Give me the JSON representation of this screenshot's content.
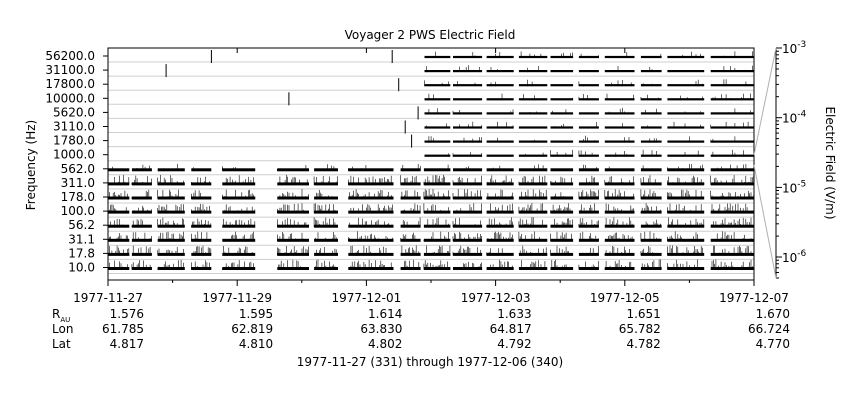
{
  "chart_data": {
    "type": "heatmap",
    "title": "Voyager 2 PWS Electric Field",
    "ylabel": "Frequency (Hz)",
    "colorbar": {
      "label": "Electric Field (V/m)",
      "scale": "log",
      "range": [
        5e-07,
        0.001
      ],
      "ticks": [
        {
          "mantissa": "10",
          "exp": "-3",
          "value": 0.001
        },
        {
          "mantissa": "10",
          "exp": "-4",
          "value": 0.0001
        },
        {
          "mantissa": "10",
          "exp": "-5",
          "value": 1e-05
        },
        {
          "mantissa": "10",
          "exp": "-6",
          "value": 1e-06
        }
      ]
    },
    "channels": [
      "10.0",
      "17.8",
      "31.1",
      "56.2",
      "100.0",
      "178.0",
      "311.0",
      "562.0",
      "1000.0",
      "1780.0",
      "3110.0",
      "5620.0",
      "10000.0",
      "17800.0",
      "31100.0",
      "56200.0"
    ],
    "x_range": [
      "1977-11-27",
      "1977-12-07"
    ],
    "x_ticks": [
      "1977-11-27",
      "1977-11-29",
      "1977-12-01",
      "1977-12-03",
      "1977-12-05",
      "1977-12-07"
    ],
    "ephemeris": {
      "rows": [
        {
          "label": "R",
          "sub": "AU",
          "values": [
            "1.576",
            "1.595",
            "1.614",
            "1.633",
            "1.651",
            "1.670"
          ]
        },
        {
          "label": "Lon",
          "sub": "",
          "values": [
            "61.785",
            "62.819",
            "63.830",
            "64.817",
            "65.782",
            "66.724"
          ]
        },
        {
          "label": "Lat",
          "sub": "",
          "values": [
            "4.817",
            "4.810",
            "4.802",
            "4.792",
            "4.782",
            "4.770"
          ]
        }
      ]
    },
    "footer": "1977-11-27 (331) through 1977-12-06 (340)",
    "coverage_segments_days": [
      [
        0.0,
        0.33
      ],
      [
        0.37,
        0.68
      ],
      [
        0.77,
        1.19
      ],
      [
        1.29,
        1.6
      ],
      [
        1.77,
        2.28
      ],
      [
        2.62,
        3.11
      ],
      [
        3.19,
        3.56
      ],
      [
        3.72,
        4.42
      ],
      [
        4.53,
        4.84
      ],
      [
        4.89,
        5.3
      ],
      [
        5.34,
        5.79
      ],
      [
        5.86,
        6.28
      ],
      [
        6.36,
        6.8
      ],
      [
        6.85,
        7.2
      ],
      [
        7.29,
        7.6
      ],
      [
        7.69,
        8.15
      ],
      [
        8.25,
        8.57
      ],
      [
        8.66,
        9.23
      ],
      [
        9.33,
        10.0
      ]
    ],
    "low_channel_start_day": 0.0,
    "high_channel_start_day": 4.9,
    "spike_events": [
      {
        "day": 0.9,
        "channel": "31100.0"
      },
      {
        "day": 1.6,
        "channel": "56200.0"
      },
      {
        "day": 2.8,
        "channel": "10000.0"
      },
      {
        "day": 4.4,
        "channel": "56200.0"
      },
      {
        "day": 4.5,
        "channel": "17800.0"
      },
      {
        "day": 4.6,
        "channel": "3110.0"
      },
      {
        "day": 4.7,
        "channel": "1780.0"
      },
      {
        "day": 4.8,
        "channel": "5620.0"
      }
    ]
  }
}
